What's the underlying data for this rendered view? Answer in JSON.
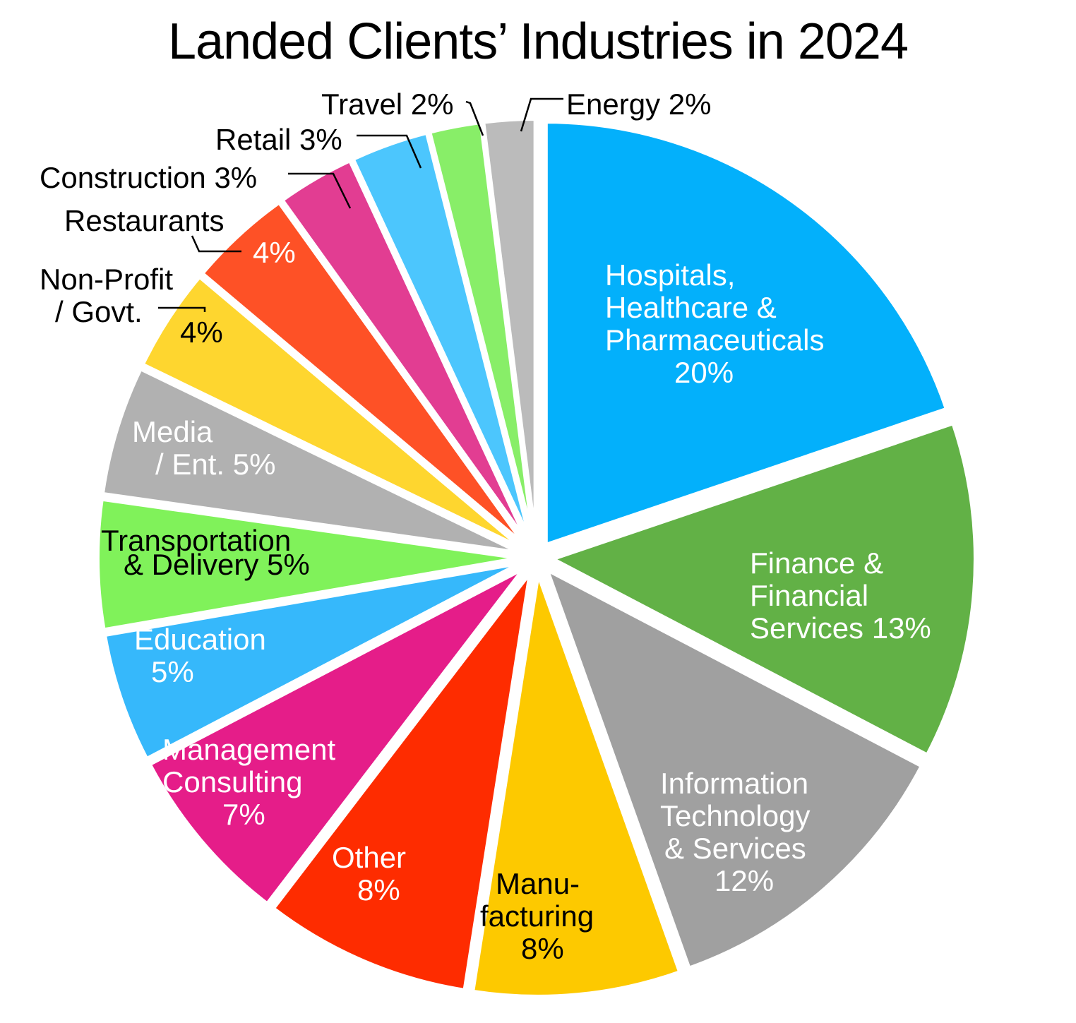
{
  "chart_data": {
    "type": "pie",
    "title": "Landed Clients’ Industries in 2024",
    "start_angle_deg": 0,
    "direction": "clockwise",
    "exploded": true,
    "unit": "%",
    "slices": [
      {
        "category": "Hospitals, Healthcare & Pharmaceuticals",
        "value": 20,
        "color": "#03b0fb",
        "text_color": "#ffffff",
        "label_lines": [
          "Hospitals,",
          "Healthcare &",
          "Pharmaceuticals",
          "20%"
        ]
      },
      {
        "category": "Finance & Financial Services",
        "value": 13,
        "color": "#62b146",
        "text_color": "#ffffff",
        "label_lines": [
          "Finance &",
          "Financial",
          "Services 13%"
        ]
      },
      {
        "category": "Information Technology & Services",
        "value": 12,
        "color": "#a0a0a0",
        "text_color": "#ffffff",
        "label_lines": [
          "Information",
          "Technology",
          "& Services",
          "12%"
        ]
      },
      {
        "category": "Manufacturing",
        "value": 8,
        "color": "#fdc900",
        "text_color": "#000000",
        "label_lines": [
          "Manu-",
          "facturing",
          "8%"
        ]
      },
      {
        "category": "Other",
        "value": 8,
        "color": "#fe2c00",
        "text_color": "#ffffff",
        "label_lines": [
          "Other",
          "8%"
        ]
      },
      {
        "category": "Management Consulting",
        "value": 7,
        "color": "#e51d89",
        "text_color": "#ffffff",
        "label_lines": [
          "Management",
          "Consulting",
          "7%"
        ]
      },
      {
        "category": "Education",
        "value": 5,
        "color": "#36b8fb",
        "text_color": "#ffffff",
        "label_lines": [
          "Education",
          "5%"
        ]
      },
      {
        "category": "Transportation & Delivery",
        "value": 5,
        "color": "#80f25a",
        "text_color": "#000000",
        "label_lines": [
          "Transportation",
          "& Delivery 5%"
        ]
      },
      {
        "category": "Media / Ent.",
        "value": 5,
        "color": "#b1b1b1",
        "text_color": "#ffffff",
        "label_lines": [
          "Media",
          "/ Ent. 5%"
        ]
      },
      {
        "category": "Non-Profit / Govt.",
        "value": 4,
        "color": "#fed62f",
        "text_color": "#000000",
        "label_lines": [
          "4%"
        ],
        "callout_lines": [
          "Non-Profit",
          "/ Govt."
        ]
      },
      {
        "category": "Restaurants",
        "value": 4,
        "color": "#fe5126",
        "text_color": "#ffffff",
        "label_lines": [
          "4%"
        ],
        "callout_lines": [
          "Restaurants"
        ]
      },
      {
        "category": "Construction",
        "value": 3,
        "color": "#e23d92",
        "text_color": "#000000",
        "label_lines": [],
        "callout_lines": [
          "Construction 3%"
        ]
      },
      {
        "category": "Retail",
        "value": 3,
        "color": "#4cc6fd",
        "text_color": "#000000",
        "label_lines": [],
        "callout_lines": [
          "Retail 3%"
        ]
      },
      {
        "category": "Travel",
        "value": 2,
        "color": "#88ee68",
        "text_color": "#000000",
        "label_lines": [],
        "callout_lines": [
          "Travel 2%"
        ]
      },
      {
        "category": "Energy",
        "value": 2,
        "color": "#bbbbbb",
        "text_color": "#000000",
        "label_lines": [],
        "callout_lines": [
          "Energy 2%"
        ]
      }
    ]
  }
}
